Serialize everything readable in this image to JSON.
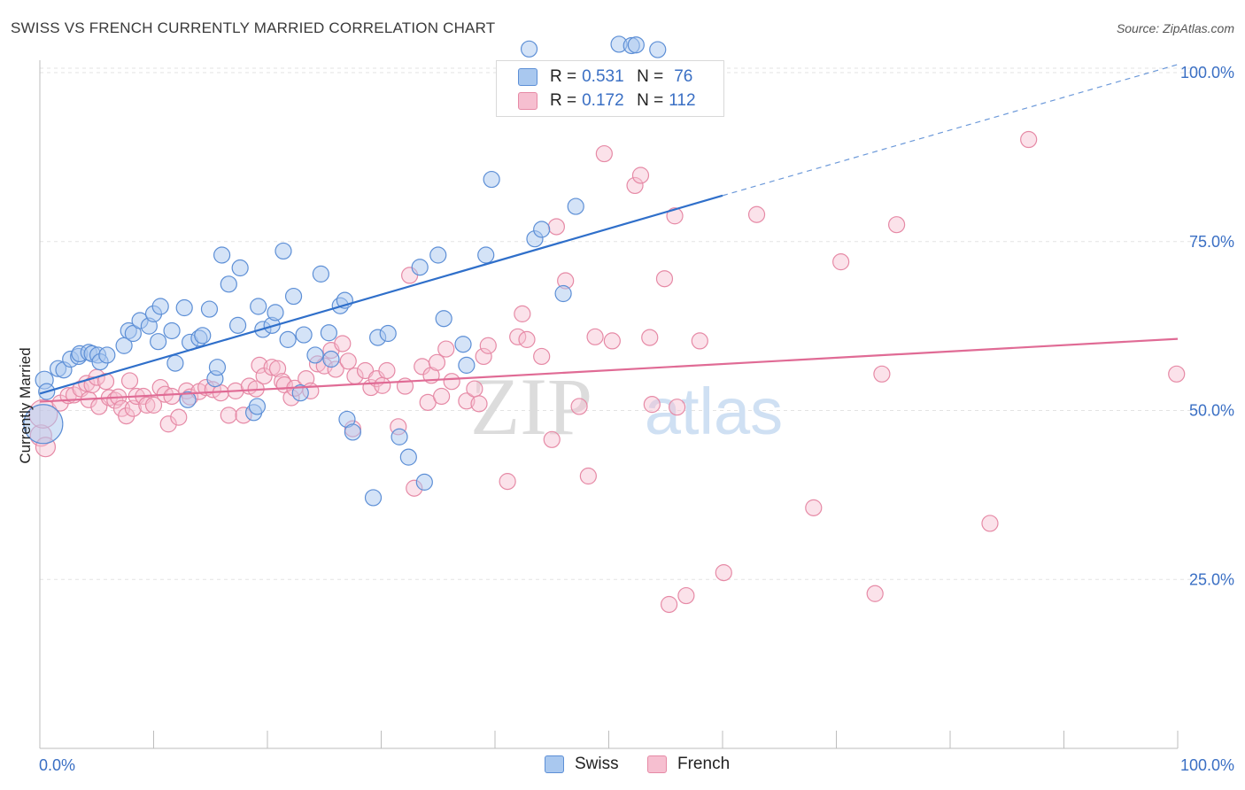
{
  "title": "SWISS VS FRENCH CURRENTLY MARRIED CORRELATION CHART",
  "source": "Source: ZipAtlas.com",
  "legend": {
    "r_label": "R =",
    "n_label": "N =",
    "swiss": {
      "r": "0.531",
      "n": "76"
    },
    "french": {
      "r": "0.172",
      "n": "112"
    }
  },
  "bottom_legend": {
    "swiss": "Swiss",
    "french": "French"
  },
  "watermark": {
    "zip": "ZIP",
    "atlas": "atlas"
  },
  "colors": {
    "swiss_fill": "#a9c8ef",
    "swiss_stroke": "#5d8fd6",
    "swiss_line": "#2f6fca",
    "french_fill": "#f6bfd0",
    "french_stroke": "#e68aa6",
    "french_line": "#e06b95",
    "tick_text": "#3a6fc4",
    "grid": "#e3e3e3"
  },
  "chart_data": {
    "type": "scatter",
    "title": "SWISS VS FRENCH CURRENTLY MARRIED CORRELATION CHART",
    "xlabel": "",
    "ylabel": "Currently Married",
    "xlim": [
      0,
      100
    ],
    "ylim": [
      0,
      100
    ],
    "x_tick_labels": [
      "0.0%",
      "100.0%"
    ],
    "y_tick_labels": [
      "25.0%",
      "50.0%",
      "75.0%",
      "100.0%"
    ],
    "y_ticks": [
      25,
      50,
      75,
      100
    ],
    "grid": true,
    "legend_position": "top-center",
    "series": [
      {
        "name": "Swiss",
        "r": 0.531,
        "n": 76,
        "trend": {
          "x0": 0,
          "y0": 52.5,
          "x1": 60,
          "y1": 81.8,
          "dashed_to_x": 100,
          "dashed_to_y": 101.2
        },
        "points": [
          [
            0.3,
            48,
            22
          ],
          [
            0.4,
            54.5,
            10
          ],
          [
            0.6,
            52.8,
            9
          ],
          [
            1.6,
            56.2,
            9
          ],
          [
            2.1,
            56.0,
            9
          ],
          [
            2.7,
            57.6,
            9
          ],
          [
            3.4,
            58.0,
            9
          ],
          [
            3.5,
            58.4,
            9
          ],
          [
            4.3,
            58.6,
            9
          ],
          [
            4.6,
            58.4,
            9
          ],
          [
            5.1,
            58.2,
            9
          ],
          [
            5.3,
            57.2,
            9
          ],
          [
            5.9,
            58.2,
            9
          ],
          [
            7.4,
            59.6,
            9
          ],
          [
            7.8,
            61.8,
            9
          ],
          [
            8.2,
            61.4,
            9
          ],
          [
            8.8,
            63.3,
            9
          ],
          [
            9.6,
            62.5,
            9
          ],
          [
            10.0,
            64.3,
            9
          ],
          [
            10.4,
            60.2,
            9
          ],
          [
            10.6,
            65.4,
            9
          ],
          [
            11.6,
            61.8,
            9
          ],
          [
            11.9,
            57.0,
            9
          ],
          [
            12.7,
            65.2,
            9
          ],
          [
            13.0,
            51.6,
            9
          ],
          [
            13.2,
            60.1,
            9
          ],
          [
            14.0,
            60.7,
            9
          ],
          [
            14.3,
            61.1,
            9
          ],
          [
            14.9,
            65.0,
            9
          ],
          [
            15.4,
            54.7,
            9
          ],
          [
            15.6,
            56.4,
            9
          ],
          [
            16.0,
            73.0,
            9
          ],
          [
            16.6,
            68.7,
            9
          ],
          [
            17.4,
            62.6,
            9
          ],
          [
            17.6,
            71.1,
            9
          ],
          [
            18.8,
            49.7,
            9
          ],
          [
            19.1,
            50.6,
            9
          ],
          [
            19.2,
            65.4,
            9
          ],
          [
            19.6,
            62.0,
            9
          ],
          [
            20.4,
            62.6,
            9
          ],
          [
            20.7,
            64.5,
            9
          ],
          [
            21.4,
            73.6,
            9
          ],
          [
            21.8,
            60.5,
            9
          ],
          [
            22.3,
            66.9,
            9
          ],
          [
            22.9,
            52.6,
            9
          ],
          [
            23.2,
            61.2,
            9
          ],
          [
            24.2,
            58.2,
            9
          ],
          [
            24.7,
            70.2,
            9
          ],
          [
            25.4,
            61.5,
            9
          ],
          [
            25.6,
            57.6,
            9
          ],
          [
            26.4,
            65.5,
            9
          ],
          [
            26.8,
            66.3,
            9
          ],
          [
            27.0,
            48.7,
            9
          ],
          [
            27.5,
            46.8,
            9
          ],
          [
            29.3,
            37.1,
            9
          ],
          [
            29.7,
            60.8,
            9
          ],
          [
            30.6,
            61.4,
            9
          ],
          [
            31.6,
            46.1,
            9
          ],
          [
            32.4,
            43.1,
            9
          ],
          [
            33.4,
            71.2,
            9
          ],
          [
            33.8,
            39.4,
            9
          ],
          [
            35.0,
            73.0,
            9
          ],
          [
            35.5,
            63.6,
            9
          ],
          [
            37.2,
            59.8,
            9
          ],
          [
            37.5,
            56.7,
            9
          ],
          [
            39.2,
            73.0,
            9
          ],
          [
            39.7,
            84.2,
            9
          ],
          [
            43.5,
            75.4,
            9
          ],
          [
            44.1,
            76.8,
            9
          ],
          [
            46.0,
            67.3,
            9
          ],
          [
            47.1,
            80.2,
            9
          ],
          [
            43.0,
            103.5,
            9
          ],
          [
            50.9,
            104.2,
            9
          ],
          [
            52.0,
            104.0,
            9
          ],
          [
            52.4,
            104.1,
            9
          ],
          [
            54.3,
            103.4,
            9
          ]
        ]
      },
      {
        "name": "French",
        "r": 0.172,
        "n": 112,
        "trend": {
          "x0": 0,
          "y0": 51.3,
          "x1": 100,
          "y1": 60.6
        },
        "points": [
          [
            0.1,
            46.3,
            12
          ],
          [
            0.3,
            49.5,
            16
          ],
          [
            0.5,
            44.6,
            11
          ],
          [
            1.8,
            51.1,
            9
          ],
          [
            2.5,
            52.2,
            9
          ],
          [
            3.0,
            52.3,
            9
          ],
          [
            3.6,
            53.2,
            9
          ],
          [
            4.1,
            54.0,
            9
          ],
          [
            4.3,
            51.6,
            9
          ],
          [
            4.6,
            53.8,
            9
          ],
          [
            5.0,
            54.9,
            9
          ],
          [
            5.2,
            50.6,
            9
          ],
          [
            5.8,
            54.3,
            9
          ],
          [
            6.1,
            51.9,
            9
          ],
          [
            6.6,
            51.5,
            9
          ],
          [
            6.9,
            52.0,
            9
          ],
          [
            7.2,
            50.3,
            9
          ],
          [
            7.6,
            49.2,
            9
          ],
          [
            7.9,
            54.4,
            9
          ],
          [
            8.2,
            50.3,
            9
          ],
          [
            8.5,
            52.1,
            9
          ],
          [
            9.1,
            52.1,
            9
          ],
          [
            9.4,
            50.8,
            9
          ],
          [
            10.0,
            50.8,
            9
          ],
          [
            10.6,
            53.4,
            9
          ],
          [
            11.0,
            52.4,
            9
          ],
          [
            11.3,
            48.0,
            9
          ],
          [
            11.6,
            52.1,
            9
          ],
          [
            12.2,
            49.0,
            9
          ],
          [
            12.9,
            52.9,
            9
          ],
          [
            13.2,
            52.0,
            9
          ],
          [
            14.0,
            52.8,
            9
          ],
          [
            14.6,
            53.4,
            9
          ],
          [
            15.2,
            53.1,
            9
          ],
          [
            15.9,
            52.6,
            9
          ],
          [
            16.6,
            49.3,
            9
          ],
          [
            17.2,
            52.9,
            9
          ],
          [
            17.9,
            49.3,
            9
          ],
          [
            18.4,
            53.6,
            9
          ],
          [
            19.0,
            53.2,
            9
          ],
          [
            19.3,
            56.7,
            9
          ],
          [
            19.7,
            55.1,
            9
          ],
          [
            20.4,
            56.4,
            9
          ],
          [
            20.9,
            56.2,
            9
          ],
          [
            21.3,
            54.3,
            9
          ],
          [
            21.5,
            53.8,
            9
          ],
          [
            22.1,
            51.9,
            9
          ],
          [
            22.4,
            53.3,
            9
          ],
          [
            23.4,
            54.7,
            9
          ],
          [
            23.8,
            52.9,
            9
          ],
          [
            24.4,
            56.9,
            9
          ],
          [
            25.0,
            56.6,
            9
          ],
          [
            25.6,
            58.9,
            9
          ],
          [
            26.0,
            56.1,
            9
          ],
          [
            26.6,
            59.9,
            9
          ],
          [
            27.1,
            57.3,
            9
          ],
          [
            27.5,
            47.3,
            9
          ],
          [
            27.7,
            55.1,
            9
          ],
          [
            28.6,
            55.9,
            9
          ],
          [
            29.1,
            53.4,
            9
          ],
          [
            29.6,
            54.7,
            9
          ],
          [
            30.1,
            53.7,
            9
          ],
          [
            30.5,
            55.9,
            9
          ],
          [
            31.5,
            47.6,
            9
          ],
          [
            32.1,
            53.6,
            9
          ],
          [
            32.5,
            70.0,
            9
          ],
          [
            32.9,
            38.5,
            9
          ],
          [
            33.6,
            56.5,
            9
          ],
          [
            34.1,
            51.2,
            9
          ],
          [
            34.4,
            55.2,
            9
          ],
          [
            34.9,
            57.1,
            9
          ],
          [
            35.3,
            52.1,
            9
          ],
          [
            35.7,
            59.1,
            9
          ],
          [
            36.2,
            54.3,
            9
          ],
          [
            37.5,
            51.4,
            9
          ],
          [
            38.2,
            53.2,
            9
          ],
          [
            38.6,
            51.0,
            9
          ],
          [
            39.0,
            58.0,
            9
          ],
          [
            39.4,
            59.6,
            9
          ],
          [
            41.1,
            39.5,
            9
          ],
          [
            42.0,
            60.9,
            9
          ],
          [
            42.4,
            64.3,
            9
          ],
          [
            42.8,
            60.5,
            9
          ],
          [
            44.1,
            58.0,
            9
          ],
          [
            45.0,
            45.7,
            9
          ],
          [
            45.4,
            77.2,
            9
          ],
          [
            46.2,
            69.2,
            9
          ],
          [
            47.4,
            50.6,
            9
          ],
          [
            48.2,
            40.3,
            9
          ],
          [
            48.8,
            60.9,
            9
          ],
          [
            49.6,
            88.0,
            9
          ],
          [
            50.3,
            60.3,
            9
          ],
          [
            52.3,
            83.3,
            9
          ],
          [
            52.8,
            84.8,
            9
          ],
          [
            53.6,
            60.8,
            9
          ],
          [
            53.8,
            50.9,
            9
          ],
          [
            54.9,
            69.5,
            9
          ],
          [
            55.3,
            21.3,
            9
          ],
          [
            55.8,
            78.8,
            9
          ],
          [
            56.0,
            50.5,
            9
          ],
          [
            56.8,
            22.6,
            9
          ],
          [
            58.0,
            60.3,
            9
          ],
          [
            60.1,
            26.0,
            9
          ],
          [
            63.0,
            79.0,
            9
          ],
          [
            68.0,
            35.6,
            9
          ],
          [
            70.4,
            72.0,
            9
          ],
          [
            73.4,
            22.9,
            9
          ],
          [
            74.0,
            55.4,
            9
          ],
          [
            75.3,
            77.5,
            9
          ],
          [
            83.5,
            33.3,
            9
          ],
          [
            86.9,
            90.1,
            9
          ],
          [
            99.9,
            55.4,
            9
          ]
        ]
      }
    ]
  }
}
